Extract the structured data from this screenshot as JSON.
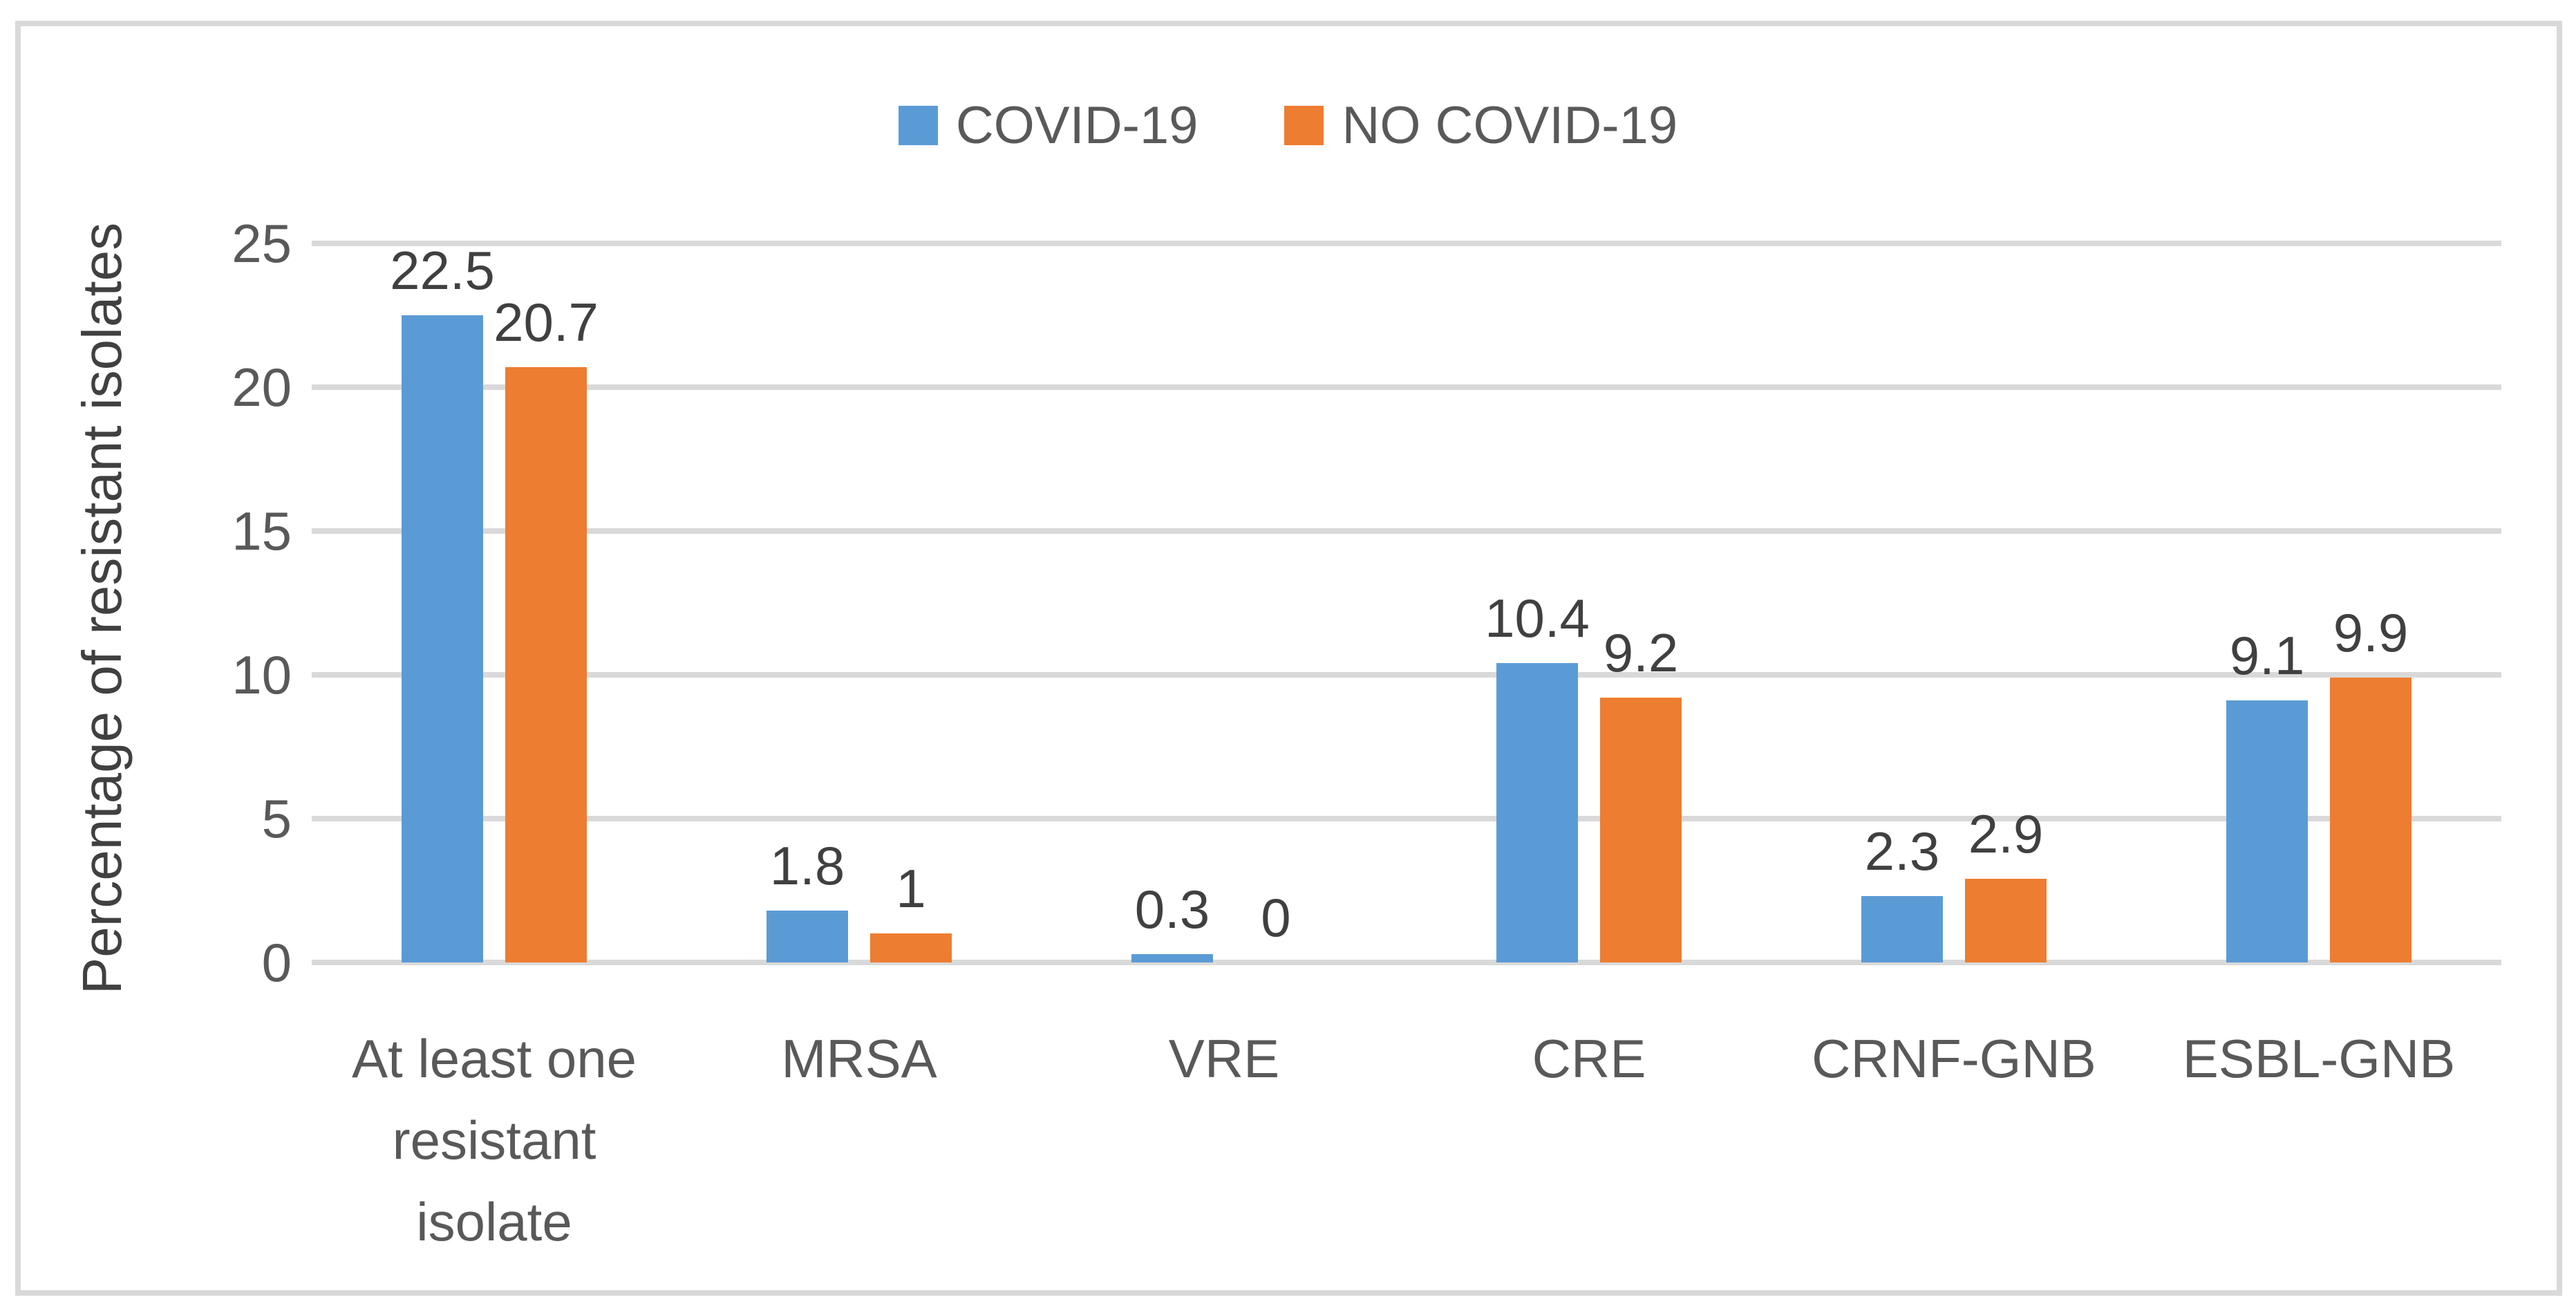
{
  "chart_data": {
    "type": "bar",
    "title": "",
    "categories": [
      "At least one resistant isolate",
      "MRSA",
      "VRE",
      "CRE",
      "CRNF-GNB",
      "ESBL-GNB"
    ],
    "category_lines": [
      [
        "At least one",
        "resistant",
        "isolate"
      ],
      [
        "MRSA"
      ],
      [
        "VRE"
      ],
      [
        "CRE"
      ],
      [
        "CRNF-GNB"
      ],
      [
        "ESBL-GNB"
      ]
    ],
    "series": [
      {
        "name": "COVID-19",
        "color": "#5B9BD5",
        "values": [
          22.5,
          1.8,
          0.3,
          10.4,
          2.3,
          9.1
        ],
        "labels": [
          "22.5",
          "1.8",
          "0.3",
          "10.4",
          "2.3",
          "9.1"
        ]
      },
      {
        "name": "NO COVID-19",
        "color": "#ED7D31",
        "values": [
          20.7,
          1.0,
          0.0,
          9.2,
          2.9,
          9.9
        ],
        "labels": [
          "20.7",
          "1",
          "0",
          "9.2",
          "2.9",
          "9.9"
        ]
      }
    ],
    "xlabel": "",
    "ylabel": "Percentage of resistant isolates",
    "ylim": [
      0,
      25
    ],
    "y_ticks": [
      0,
      5,
      10,
      15,
      20,
      25
    ],
    "grid": true,
    "legend_position": "top",
    "style": {
      "grid_color": "#d9d9d9",
      "border_color": "#d9d9d9",
      "tick_text_color": "#595959",
      "data_label_color": "#404040"
    }
  }
}
